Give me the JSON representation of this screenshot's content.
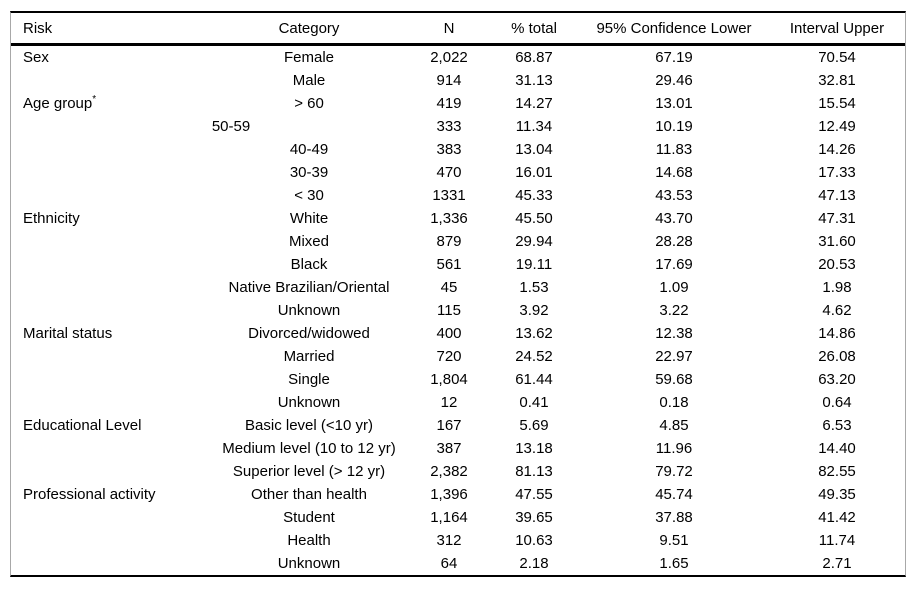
{
  "table": {
    "columns": [
      {
        "key": "risk",
        "label": "Risk"
      },
      {
        "key": "category",
        "label": "Category"
      },
      {
        "key": "n",
        "label": "N"
      },
      {
        "key": "pct",
        "label": "% total"
      },
      {
        "key": "lower",
        "label": "95% Confidence Lower"
      },
      {
        "key": "upper",
        "label": "Interval Upper"
      }
    ],
    "rows": [
      {
        "risk": "Sex",
        "risk_sup": "",
        "category": "Female",
        "n": "2,022",
        "pct": "68.87",
        "lower": "67.19",
        "upper": "70.54",
        "category_offset": false
      },
      {
        "risk": "",
        "risk_sup": "",
        "category": "Male",
        "n": "914",
        "pct": "31.13",
        "lower": "29.46",
        "upper": "32.81",
        "category_offset": false
      },
      {
        "risk": "Age group",
        "risk_sup": "*",
        "category": "> 60",
        "n": "419",
        "pct": "14.27",
        "lower": "13.01",
        "upper": "15.54",
        "category_offset": false
      },
      {
        "risk": "",
        "risk_sup": "",
        "category": "50-59",
        "n": "333",
        "pct": "11.34",
        "lower": "10.19",
        "upper": "12.49",
        "category_offset": true
      },
      {
        "risk": "",
        "risk_sup": "",
        "category": "40-49",
        "n": "383",
        "pct": "13.04",
        "lower": "11.83",
        "upper": "14.26",
        "category_offset": false
      },
      {
        "risk": "",
        "risk_sup": "",
        "category": "30-39",
        "n": "470",
        "pct": "16.01",
        "lower": "14.68",
        "upper": "17.33",
        "category_offset": false
      },
      {
        "risk": "",
        "risk_sup": "",
        "category": "< 30",
        "n": "1331",
        "pct": "45.33",
        "lower": "43.53",
        "upper": "47.13",
        "category_offset": false
      },
      {
        "risk": "Ethnicity",
        "risk_sup": "",
        "category": "White",
        "n": "1,336",
        "pct": "45.50",
        "lower": "43.70",
        "upper": "47.31",
        "category_offset": false
      },
      {
        "risk": "",
        "risk_sup": "",
        "category": "Mixed",
        "n": "879",
        "pct": "29.94",
        "lower": "28.28",
        "upper": "31.60",
        "category_offset": false
      },
      {
        "risk": "",
        "risk_sup": "",
        "category": "Black",
        "n": "561",
        "pct": "19.11",
        "lower": "17.69",
        "upper": "20.53",
        "category_offset": false
      },
      {
        "risk": "",
        "risk_sup": "",
        "category": "Native Brazilian/Oriental",
        "n": "45",
        "pct": "1.53",
        "lower": "1.09",
        "upper": "1.98",
        "category_offset": false
      },
      {
        "risk": "",
        "risk_sup": "",
        "category": "Unknown",
        "n": "115",
        "pct": "3.92",
        "lower": "3.22",
        "upper": "4.62",
        "category_offset": false
      },
      {
        "risk": "Marital status",
        "risk_sup": "",
        "category": "Divorced/widowed",
        "n": "400",
        "pct": "13.62",
        "lower": "12.38",
        "upper": "14.86",
        "category_offset": false
      },
      {
        "risk": "",
        "risk_sup": "",
        "category": "Married",
        "n": "720",
        "pct": "24.52",
        "lower": "22.97",
        "upper": "26.08",
        "category_offset": false
      },
      {
        "risk": "",
        "risk_sup": "",
        "category": "Single",
        "n": "1,804",
        "pct": "61.44",
        "lower": "59.68",
        "upper": "63.20",
        "category_offset": false
      },
      {
        "risk": "",
        "risk_sup": "",
        "category": "Unknown",
        "n": "12",
        "pct": "0.41",
        "lower": "0.18",
        "upper": "0.64",
        "category_offset": false
      },
      {
        "risk": "Educational Level",
        "risk_sup": "",
        "category": "Basic level (<10 yr)",
        "n": "167",
        "pct": "5.69",
        "lower": "4.85",
        "upper": "6.53",
        "category_offset": false
      },
      {
        "risk": "",
        "risk_sup": "",
        "category": "Medium level (10 to 12 yr)",
        "n": "387",
        "pct": "13.18",
        "lower": "11.96",
        "upper": "14.40",
        "category_offset": false
      },
      {
        "risk": "",
        "risk_sup": "",
        "category": "Superior level (> 12 yr)",
        "n": "2,382",
        "pct": "81.13",
        "lower": "79.72",
        "upper": "82.55",
        "category_offset": false
      },
      {
        "risk": "Professional activity",
        "risk_sup": "",
        "category": "Other than health",
        "n": "1,396",
        "pct": "47.55",
        "lower": "45.74",
        "upper": "49.35",
        "category_offset": false
      },
      {
        "risk": "",
        "risk_sup": "",
        "category": "Student",
        "n": "1,164",
        "pct": "39.65",
        "lower": "37.88",
        "upper": "41.42",
        "category_offset": false
      },
      {
        "risk": "",
        "risk_sup": "",
        "category": "Health",
        "n": "312",
        "pct": "10.63",
        "lower": "9.51",
        "upper": "11.74",
        "category_offset": false
      },
      {
        "risk": "",
        "risk_sup": "",
        "category": "Unknown",
        "n": "64",
        "pct": "2.18",
        "lower": "1.65",
        "upper": "2.71",
        "category_offset": false
      }
    ]
  }
}
